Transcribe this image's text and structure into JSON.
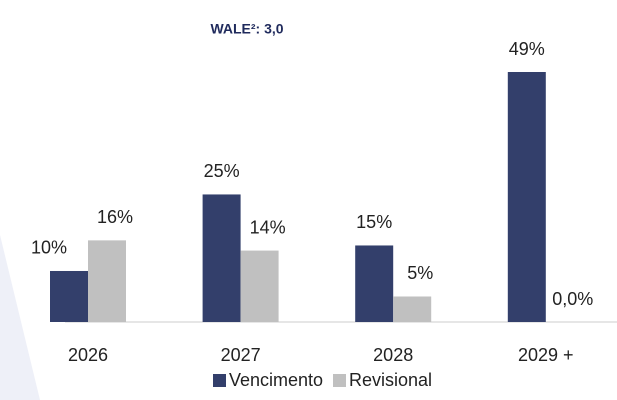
{
  "chart_data": {
    "type": "bar",
    "title": "WALE²: 3,0",
    "categories": [
      "2026",
      "2027",
      "2028",
      "2029 +"
    ],
    "series": [
      {
        "name": "Vencimento",
        "color": "#333f6b",
        "values": [
          10,
          25,
          15,
          49
        ],
        "value_labels": [
          "10%",
          "25%",
          "15%",
          "49%"
        ]
      },
      {
        "name": "Revisional",
        "color": "#c0c0c0",
        "values": [
          16,
          14,
          5,
          0
        ],
        "value_labels": [
          "16%",
          "14%",
          "5%",
          "0,0%"
        ]
      }
    ]
  }
}
